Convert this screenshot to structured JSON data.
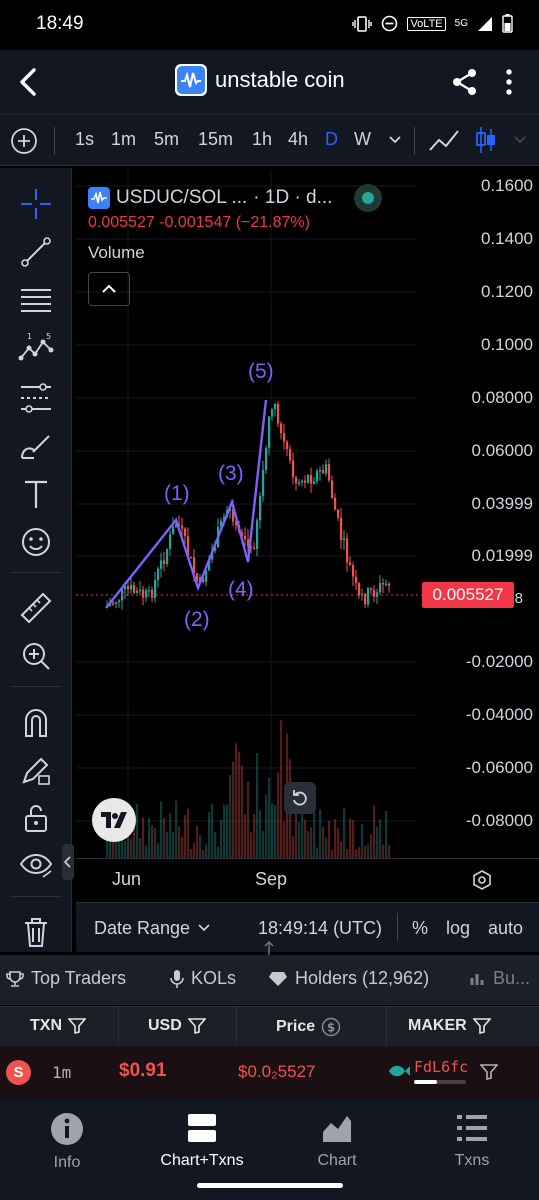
{
  "status_bar": {
    "time": "18:49",
    "network": "5G",
    "volte": "VoLTE"
  },
  "header": {
    "title": "unstable coin"
  },
  "timeframes": [
    "1s",
    "1m",
    "5m",
    "15m",
    "1h",
    "4h",
    "D",
    "W"
  ],
  "active_timeframe": "D",
  "legend": {
    "symbol": "USDUC/SOL ...",
    "interval": "· 1D · d...",
    "values": "0.005527  -0.001547 (−21.87%)",
    "volume_label": "Volume"
  },
  "price_axis": [
    "0.1600",
    "0.1400",
    "0.1200",
    "0.1000",
    "0.08000",
    "0.06000",
    "0.03999",
    "0.01999",
    "0.005527",
    "-0.02000",
    "-0.04000",
    "-0.06000",
    "-0.08000"
  ],
  "overlapped_tick": "0.00958",
  "current_price": "0.005527",
  "wave_labels": [
    "(1)",
    "(2)",
    "(3)",
    "(4)",
    "(5)"
  ],
  "time_axis": [
    "Jun",
    "Sep"
  ],
  "date_range": {
    "label": "Date Range",
    "time": "18:49:14 (UTC)",
    "percent": "%",
    "log": "log",
    "auto": "auto"
  },
  "tabs": [
    {
      "label": "Top Traders"
    },
    {
      "label": "KOLs"
    },
    {
      "label": "Holders (12,962)"
    },
    {
      "label": "Bu..."
    }
  ],
  "txn_table": {
    "headers": [
      "TXN",
      "USD",
      "Price",
      "MAKER"
    ],
    "rows": [
      {
        "type": "S",
        "age": "1m",
        "usd": "$0.91",
        "price": "$0.0₂5527",
        "maker": "FdL6fc"
      }
    ]
  },
  "bottom_nav": [
    {
      "label": "Info"
    },
    {
      "label": "Chart+Txns"
    },
    {
      "label": "Chart"
    },
    {
      "label": "Txns"
    }
  ],
  "colors": {
    "up": "#26a69a",
    "down": "#ef5350",
    "accent": "#2962ff",
    "wave": "#7b61ff",
    "price_tag": "#f23645"
  }
}
